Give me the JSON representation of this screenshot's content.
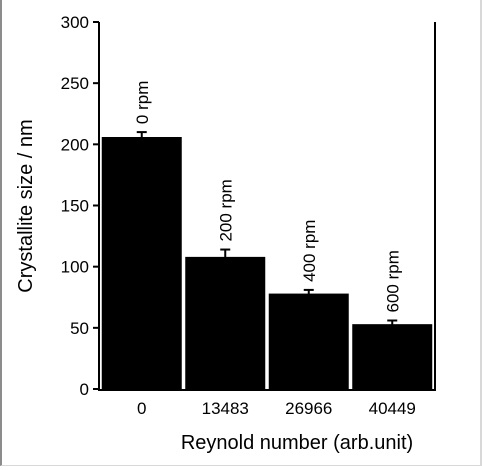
{
  "chart_data": {
    "type": "bar",
    "categories": [
      "0",
      "13483",
      "26966",
      "40449"
    ],
    "values": [
      206,
      108,
      78,
      53
    ],
    "errors": [
      4,
      6,
      3,
      3
    ],
    "bar_labels": [
      "0 rpm",
      "200 rpm",
      "400 rpm",
      "600 rpm"
    ],
    "title": "",
    "xlabel": "Reynold number (arb.unit)",
    "ylabel": "Crystallite size / nm",
    "ylim": [
      0,
      300
    ],
    "yticks": [
      "0",
      "50",
      "100",
      "150",
      "200",
      "250",
      "300"
    ],
    "grid": false,
    "legend": "none",
    "bar_color": "#000000",
    "axis_color": "#000000"
  }
}
